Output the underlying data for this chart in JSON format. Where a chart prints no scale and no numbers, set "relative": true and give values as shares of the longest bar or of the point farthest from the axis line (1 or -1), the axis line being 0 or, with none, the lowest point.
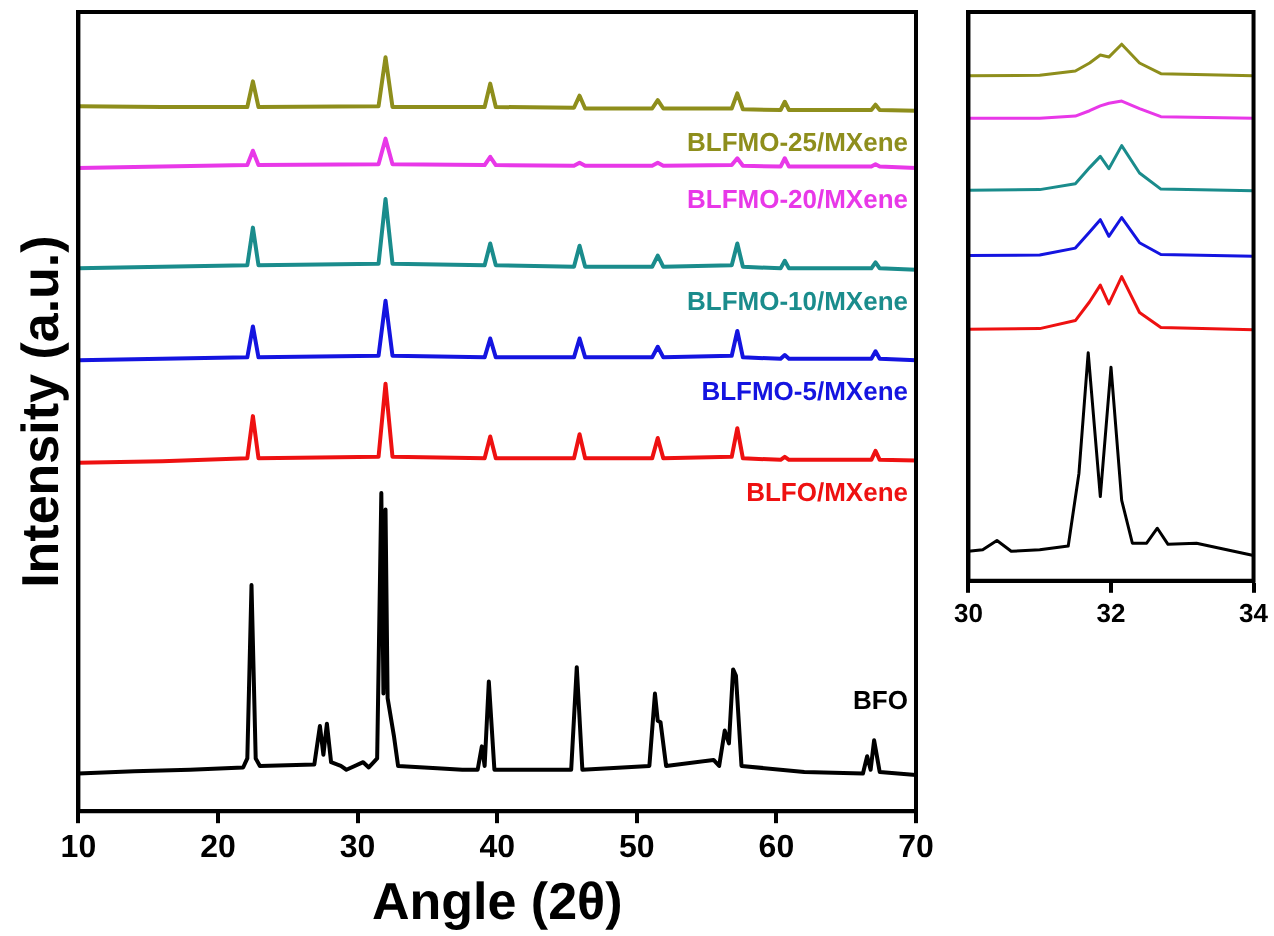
{
  "chart_data": [
    {
      "type": "line",
      "xlabel": "Angle (2θ)",
      "ylabel": "Intensity (a.u.)",
      "relative": true,
      "legend": false,
      "xlim": [
        10,
        70
      ],
      "xticks": [
        10,
        20,
        30,
        40,
        50,
        60,
        70
      ],
      "x": [
        10,
        16,
        22.1,
        22.5,
        22.9,
        31.5,
        32.0,
        32.5,
        39.1,
        39.5,
        39.9,
        45.5,
        45.9,
        46.3,
        51.1,
        51.5,
        51.9,
        56.8,
        57.2,
        57.6,
        60.3,
        60.6,
        60.9,
        66.8,
        67.1,
        67.4,
        70
      ],
      "series": [
        {
          "name": "BFO",
          "color": "#000000",
          "x": [
            10,
            14,
            18,
            21.8,
            22.1,
            22.4,
            22.7,
            23,
            26.9,
            27.3,
            27.55,
            27.8,
            28.1,
            28.8,
            29.2,
            30.4,
            30.8,
            31.4,
            31.7,
            31.85,
            32.0,
            32.15,
            32.6,
            32.9,
            35.7,
            37.5,
            38.6,
            38.9,
            39.1,
            39.4,
            39.8,
            45.3,
            45.7,
            46.1,
            50.9,
            51.3,
            51.5,
            51.7,
            52.1,
            55.5,
            55.9,
            56.3,
            56.6,
            56.9,
            57.1,
            57.5,
            62,
            66.2,
            66.5,
            66.75,
            67.0,
            67.4,
            70
          ],
          "values": [
            0.05,
            0.053,
            0.055,
            0.058,
            0.07,
            0.3,
            0.07,
            0.06,
            0.062,
            0.113,
            0.075,
            0.116,
            0.065,
            0.06,
            0.055,
            0.065,
            0.058,
            0.07,
            0.422,
            0.156,
            0.4,
            0.15,
            0.1,
            0.06,
            0.057,
            0.055,
            0.055,
            0.086,
            0.06,
            0.172,
            0.055,
            0.055,
            0.191,
            0.055,
            0.06,
            0.156,
            0.12,
            0.118,
            0.06,
            0.068,
            0.06,
            0.107,
            0.09,
            0.188,
            0.18,
            0.06,
            0.052,
            0.05,
            0.073,
            0.055,
            0.094,
            0.052,
            0.048
          ]
        },
        {
          "name": "BLFO/MXene",
          "color": "#ee1111",
          "values": [
            0.462,
            0.464,
            0.468,
            0.524,
            0.468,
            0.47,
            0.567,
            0.47,
            0.468,
            0.497,
            0.468,
            0.468,
            0.5,
            0.468,
            0.468,
            0.495,
            0.468,
            0.47,
            0.508,
            0.468,
            0.466,
            0.47,
            0.466,
            0.466,
            0.478,
            0.466,
            0.465
          ]
        },
        {
          "name": "BLFMO-5/MXene",
          "color": "#1414e0",
          "values": [
            0.598,
            0.6,
            0.602,
            0.643,
            0.602,
            0.604,
            0.677,
            0.604,
            0.602,
            0.627,
            0.602,
            0.602,
            0.627,
            0.602,
            0.602,
            0.616,
            0.602,
            0.604,
            0.637,
            0.602,
            0.6,
            0.605,
            0.6,
            0.6,
            0.61,
            0.6,
            0.598
          ]
        },
        {
          "name": "BLFMO-10/MXene",
          "color": "#1a8c8c",
          "values": [
            0.72,
            0.722,
            0.724,
            0.774,
            0.724,
            0.726,
            0.812,
            0.726,
            0.724,
            0.753,
            0.724,
            0.722,
            0.75,
            0.722,
            0.722,
            0.737,
            0.722,
            0.724,
            0.753,
            0.722,
            0.72,
            0.73,
            0.72,
            0.72,
            0.728,
            0.72,
            0.718
          ]
        },
        {
          "name": "BLFMO-20/MXene",
          "color": "#e838e8",
          "values": [
            0.853,
            0.855,
            0.857,
            0.876,
            0.857,
            0.858,
            0.892,
            0.858,
            0.857,
            0.868,
            0.857,
            0.856,
            0.86,
            0.856,
            0.856,
            0.86,
            0.856,
            0.857,
            0.866,
            0.856,
            0.855,
            0.866,
            0.855,
            0.855,
            0.858,
            0.855,
            0.853
          ]
        },
        {
          "name": "BLFMO-25/MXene",
          "color": "#8e8e1c",
          "values": [
            0.935,
            0.934,
            0.934,
            0.968,
            0.934,
            0.935,
            1.0,
            0.934,
            0.934,
            0.965,
            0.934,
            0.933,
            0.949,
            0.932,
            0.932,
            0.943,
            0.932,
            0.932,
            0.952,
            0.931,
            0.93,
            0.941,
            0.93,
            0.93,
            0.937,
            0.93,
            0.929
          ]
        }
      ]
    },
    {
      "type": "line",
      "relative": true,
      "legend": false,
      "xlim": [
        30,
        34
      ],
      "xticks": [
        30,
        32,
        34
      ],
      "x": [
        30,
        31.0,
        31.5,
        31.7,
        31.85,
        31.97,
        32.15,
        32.4,
        32.7,
        34
      ],
      "series": [
        {
          "color": "#000000",
          "x": [
            30,
            30.2,
            30.4,
            30.6,
            31.0,
            31.4,
            31.55,
            31.68,
            31.85,
            32.0,
            32.15,
            32.3,
            32.5,
            32.65,
            32.8,
            33.2,
            34
          ],
          "values": [
            0.055,
            0.058,
            0.075,
            0.055,
            0.058,
            0.065,
            0.2,
            0.425,
            0.157,
            0.398,
            0.15,
            0.07,
            0.07,
            0.098,
            0.068,
            0.07,
            0.047
          ]
        },
        {
          "color": "#ee1111",
          "values": [
            0.469,
            0.47,
            0.485,
            0.52,
            0.551,
            0.516,
            0.567,
            0.5,
            0.472,
            0.468
          ]
        },
        {
          "color": "#1414e0",
          "values": [
            0.606,
            0.607,
            0.62,
            0.65,
            0.673,
            0.642,
            0.677,
            0.63,
            0.608,
            0.605
          ]
        },
        {
          "color": "#1a8c8c",
          "values": [
            0.728,
            0.729,
            0.74,
            0.77,
            0.791,
            0.768,
            0.811,
            0.76,
            0.73,
            0.727
          ]
        },
        {
          "color": "#e838e8",
          "values": [
            0.862,
            0.862,
            0.866,
            0.876,
            0.885,
            0.89,
            0.894,
            0.88,
            0.865,
            0.862
          ]
        },
        {
          "color": "#8e8e1c",
          "values": [
            0.941,
            0.942,
            0.95,
            0.965,
            0.98,
            0.976,
            1.0,
            0.965,
            0.945,
            0.941
          ]
        }
      ]
    }
  ]
}
